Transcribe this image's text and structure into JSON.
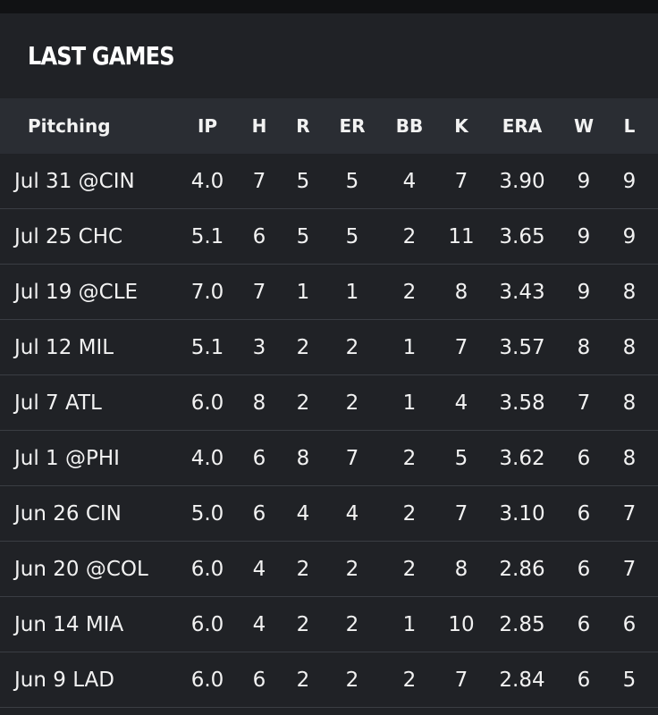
{
  "header": {
    "title": "LAST GAMES"
  },
  "table": {
    "columns": [
      "Pitching",
      "IP",
      "H",
      "R",
      "ER",
      "BB",
      "K",
      "ERA",
      "W",
      "L"
    ],
    "rows": [
      [
        "Jul 31 @CIN",
        "4.0",
        "7",
        "5",
        "5",
        "4",
        "7",
        "3.90",
        "9",
        "9"
      ],
      [
        "Jul 25 CHC",
        "5.1",
        "6",
        "5",
        "5",
        "2",
        "11",
        "3.65",
        "9",
        "9"
      ],
      [
        "Jul 19 @CLE",
        "7.0",
        "7",
        "1",
        "1",
        "2",
        "8",
        "3.43",
        "9",
        "8"
      ],
      [
        "Jul 12 MIL",
        "5.1",
        "3",
        "2",
        "2",
        "1",
        "7",
        "3.57",
        "8",
        "8"
      ],
      [
        "Jul 7 ATL",
        "6.0",
        "8",
        "2",
        "2",
        "1",
        "4",
        "3.58",
        "7",
        "8"
      ],
      [
        "Jul 1 @PHI",
        "4.0",
        "6",
        "8",
        "7",
        "2",
        "5",
        "3.62",
        "6",
        "8"
      ],
      [
        "Jun 26 CIN",
        "5.0",
        "6",
        "4",
        "4",
        "2",
        "7",
        "3.10",
        "6",
        "7"
      ],
      [
        "Jun 20 @COL",
        "6.0",
        "4",
        "2",
        "2",
        "2",
        "8",
        "2.86",
        "6",
        "7"
      ],
      [
        "Jun 14 MIA",
        "6.0",
        "4",
        "2",
        "2",
        "1",
        "10",
        "2.85",
        "6",
        "6"
      ],
      [
        "Jun 9 LAD",
        "6.0",
        "6",
        "2",
        "2",
        "2",
        "7",
        "2.84",
        "6",
        "5"
      ]
    ]
  }
}
